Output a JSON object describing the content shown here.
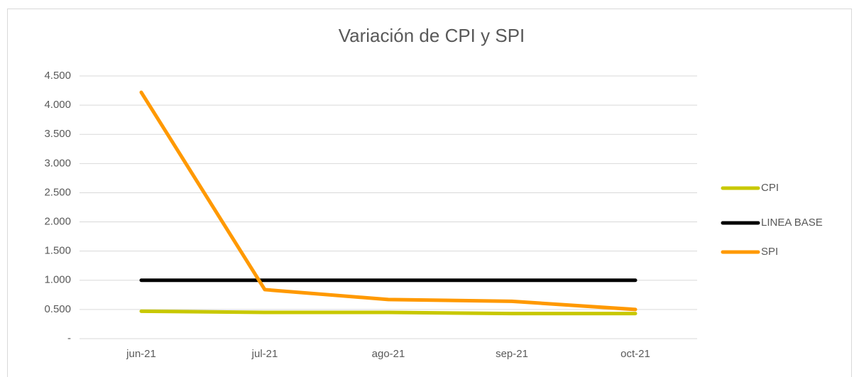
{
  "chart_data": {
    "type": "line",
    "title": "Variación de CPI y SPI",
    "categories": [
      "jun-21",
      "jul-21",
      "ago-21",
      "sep-21",
      "oct-21"
    ],
    "series": [
      {
        "name": "CPI",
        "color": "#c8c800",
        "values": [
          0.47,
          0.45,
          0.45,
          0.43,
          0.43
        ]
      },
      {
        "name": "LINEA BASE",
        "color": "#000000",
        "values": [
          1,
          1,
          1,
          1,
          1
        ]
      },
      {
        "name": "SPI",
        "color": "#ff9900",
        "values": [
          4.22,
          0.84,
          0.67,
          0.64,
          0.5
        ]
      }
    ],
    "ylim": [
      0,
      4.5
    ],
    "yticks": [
      {
        "value": 0,
        "label": "-"
      },
      {
        "value": 0.5,
        "label": "0.500"
      },
      {
        "value": 1,
        "label": "1.000"
      },
      {
        "value": 1.5,
        "label": "1.500"
      },
      {
        "value": 2,
        "label": "2.000"
      },
      {
        "value": 2.5,
        "label": "2.500"
      },
      {
        "value": 3,
        "label": "3.000"
      },
      {
        "value": 3.5,
        "label": "3.500"
      },
      {
        "value": 4,
        "label": "4.000"
      },
      {
        "value": 4.5,
        "label": "4.500"
      }
    ],
    "grid": true,
    "legend": "right"
  }
}
